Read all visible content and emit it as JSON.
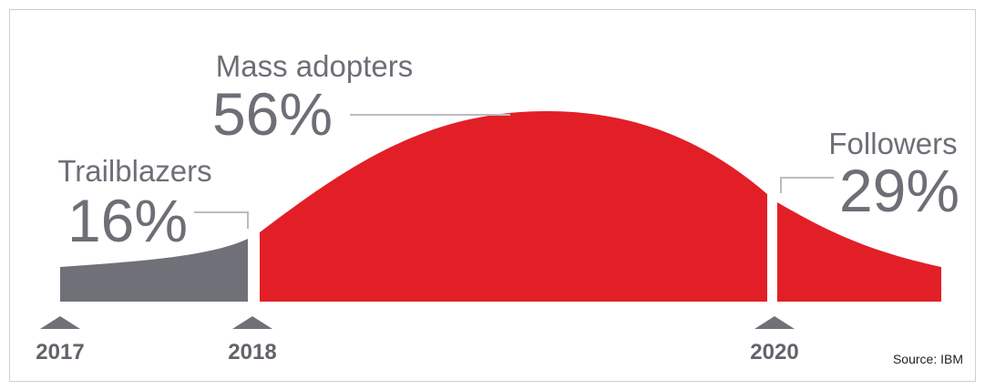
{
  "colors": {
    "background": "#ffffff",
    "frame_border": "#cfcfcf",
    "trailblazers": "#707079",
    "mass_adopters": "#e21f27",
    "followers": "#e21f27",
    "label_text": "#6e6e77",
    "leader_line": "#bcbcbc",
    "year_marker": "#707079",
    "year_text": "#63636b",
    "source_text": "#222222"
  },
  "chart_data": {
    "type": "area",
    "title": "",
    "xlabel": "",
    "ylabel": "",
    "x_ticks": [
      "2017",
      "2018",
      "2020"
    ],
    "segments": [
      {
        "name": "Trailblazers",
        "percent": 16,
        "percent_label": "16%",
        "start": "2017",
        "end": "2018",
        "color": "#707079"
      },
      {
        "name": "Mass adopters",
        "percent": 56,
        "percent_label": "56%",
        "start": "2018",
        "end": "2020",
        "color": "#e21f27"
      },
      {
        "name": "Followers",
        "percent": 29,
        "percent_label": "29%",
        "start": "2020",
        "end": "",
        "color": "#e21f27"
      }
    ],
    "source": "Source: IBM"
  }
}
